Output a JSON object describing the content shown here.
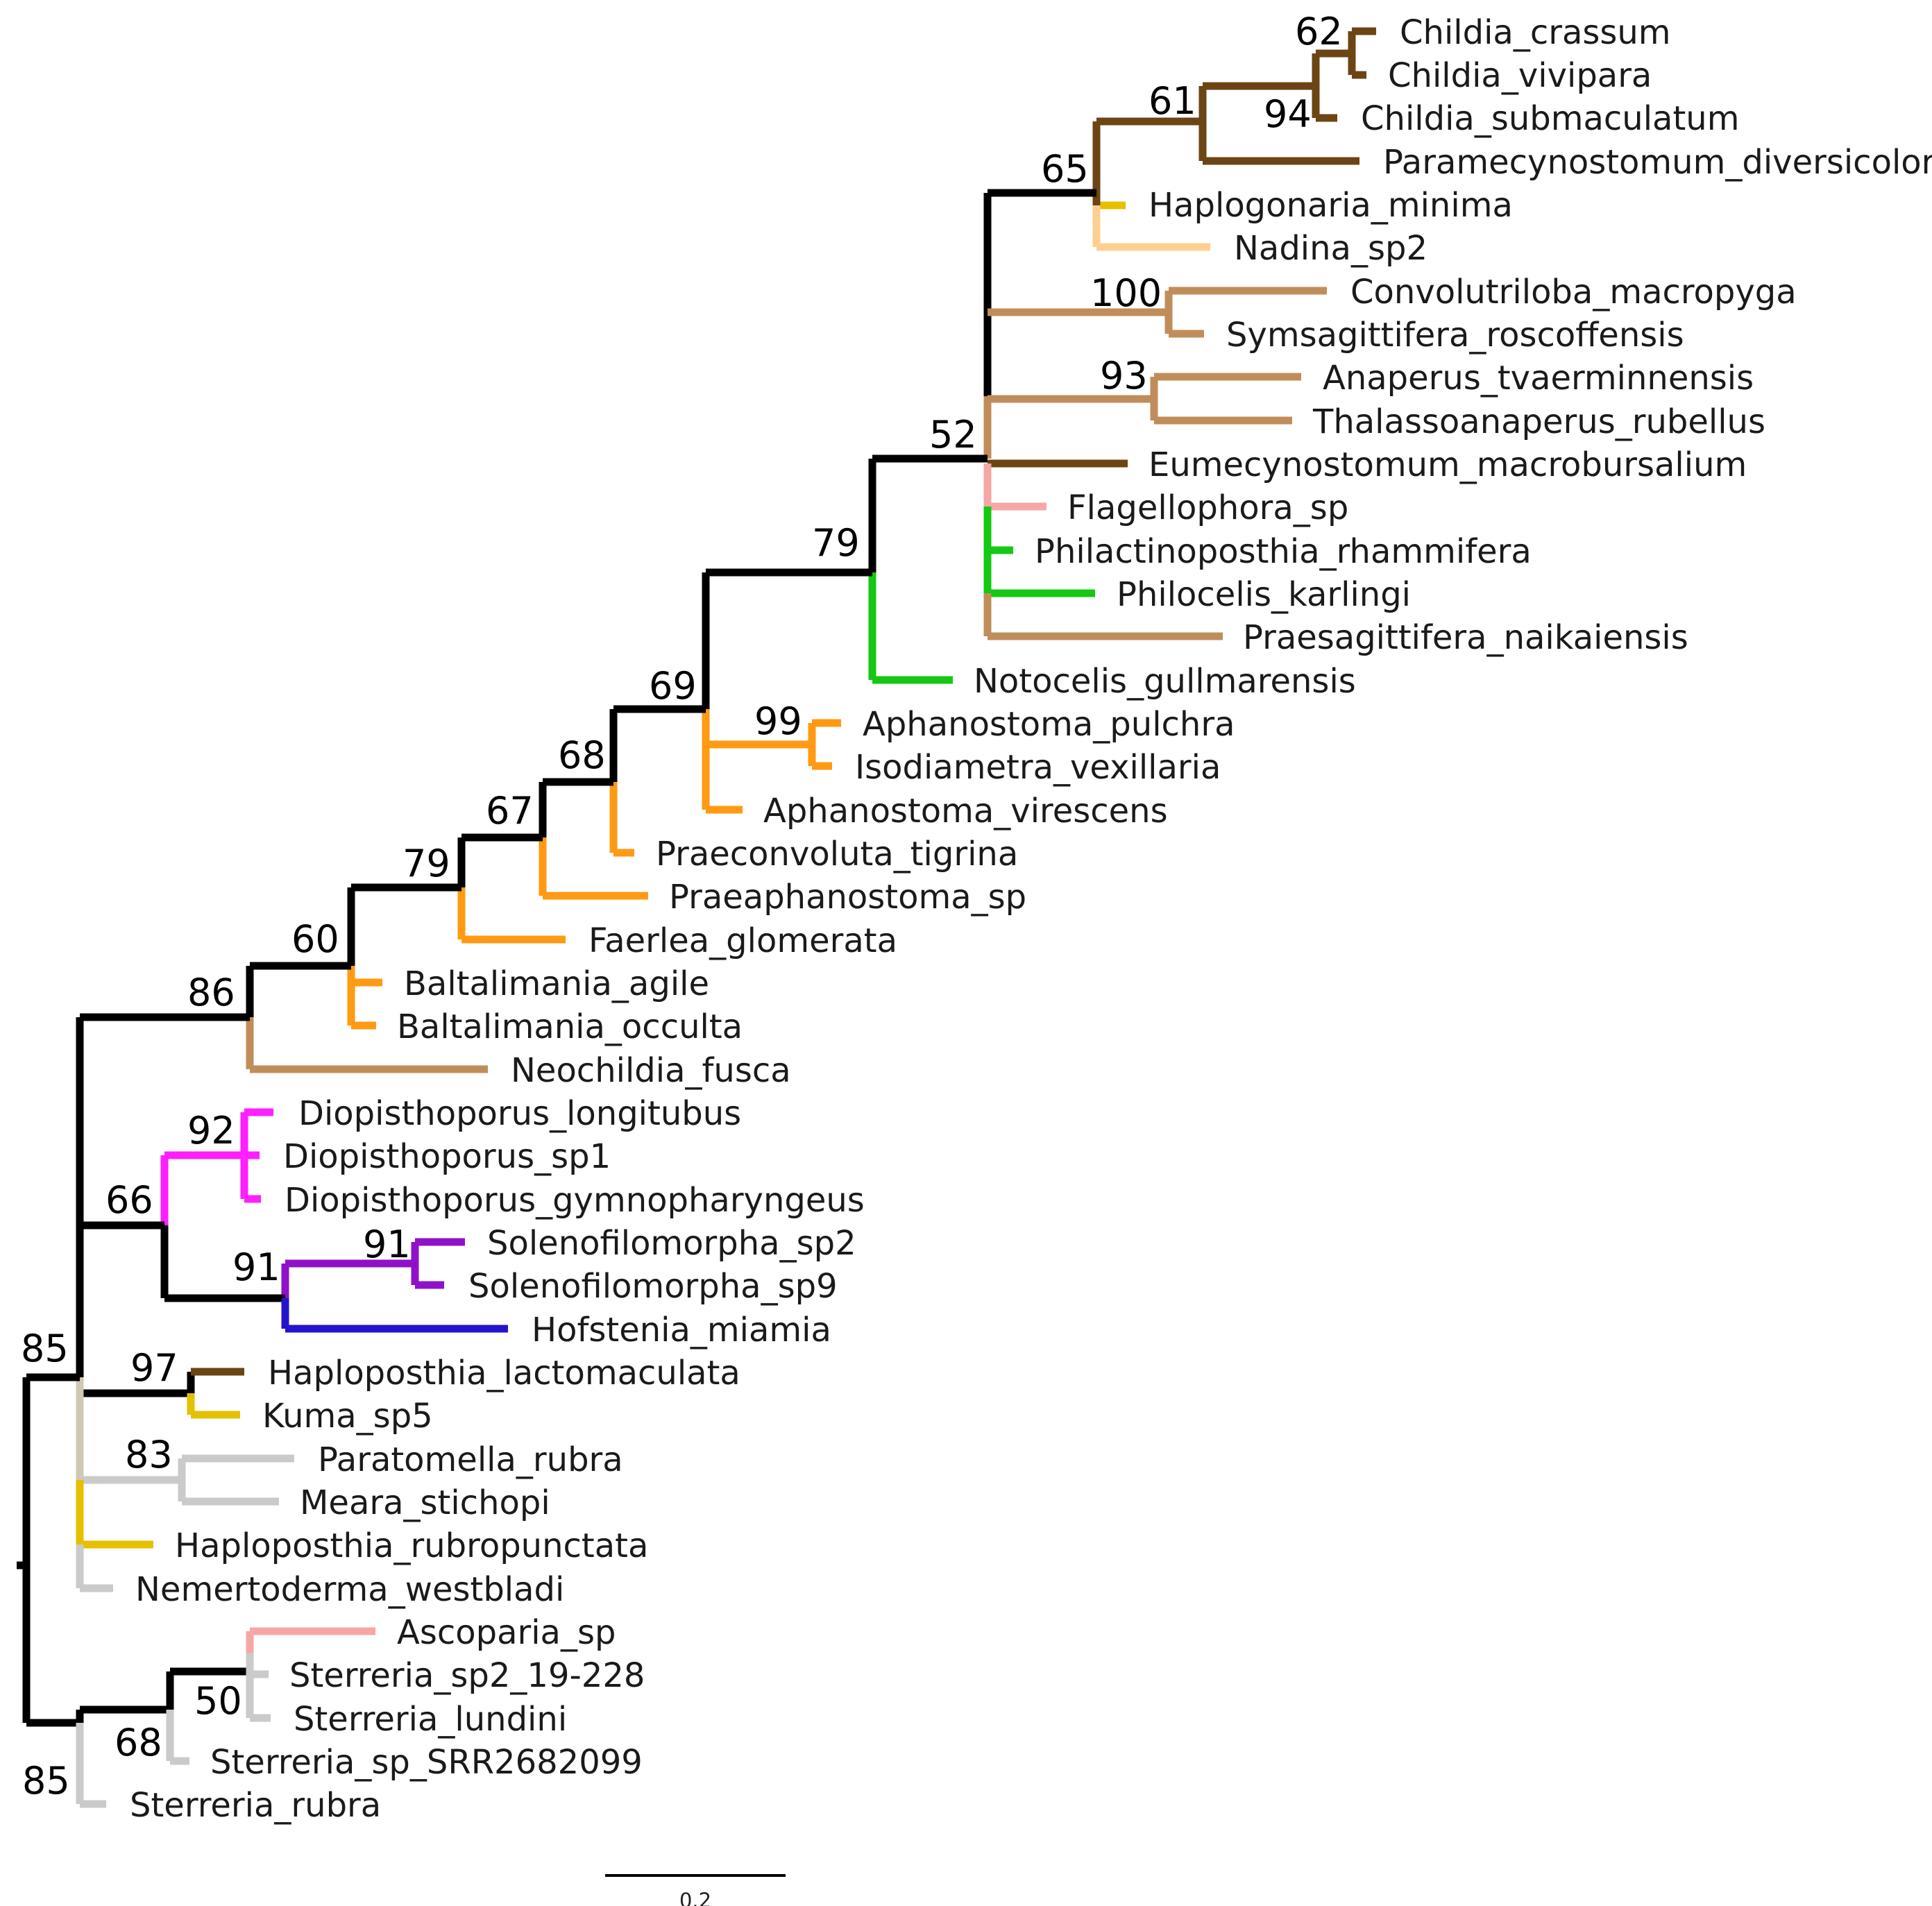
{
  "colors": {
    "black": "#000000",
    "brown": "#6b4513",
    "tan": "#c08d5a",
    "yellow": "#e5c000",
    "peach": "#ffcf92",
    "pink": "#f6a6a6",
    "green": "#14c814",
    "orange": "#ff9a12",
    "magenta": "#ff1fff",
    "purple": "#8f12c8",
    "blue": "#2414cc",
    "beige": "#cfc9b4",
    "gray": "#cacaca"
  },
  "taxa": [
    {
      "id": "t0",
      "label": "Childia_crassum",
      "color": "brown"
    },
    {
      "id": "t1",
      "label": "Childia_vivipara",
      "color": "brown"
    },
    {
      "id": "t2",
      "label": "Childia_submaculatum",
      "color": "brown"
    },
    {
      "id": "t3",
      "label": "Paramecynostomum_diversicolor",
      "color": "brown"
    },
    {
      "id": "t4",
      "label": "Haplogonaria_minima",
      "color": "yellow"
    },
    {
      "id": "t5",
      "label": "Nadina_sp2",
      "color": "peach"
    },
    {
      "id": "t6",
      "label": "Convolutriloba_macropyga",
      "color": "tan"
    },
    {
      "id": "t7",
      "label": "Symsagittifera_roscoffensis",
      "color": "tan"
    },
    {
      "id": "t8",
      "label": "Anaperus_tvaerminnensis",
      "color": "tan"
    },
    {
      "id": "t9",
      "label": "Thalassoanaperus_rubellus",
      "color": "tan"
    },
    {
      "id": "t10",
      "label": "Eumecynostomum_macrobursalium",
      "color": "brown"
    },
    {
      "id": "t11",
      "label": "Flagellophora_sp",
      "color": "pink"
    },
    {
      "id": "t12",
      "label": "Philactinoposthia_rhammifera",
      "color": "green"
    },
    {
      "id": "t13",
      "label": "Philocelis_karlingi",
      "color": "green"
    },
    {
      "id": "t14",
      "label": "Praesagittifera_naikaiensis",
      "color": "tan"
    },
    {
      "id": "t15",
      "label": "Notocelis_gullmarensis",
      "color": "green"
    },
    {
      "id": "t16",
      "label": "Aphanostoma_pulchra",
      "color": "orange"
    },
    {
      "id": "t17",
      "label": "Isodiametra_vexillaria",
      "color": "orange"
    },
    {
      "id": "t18",
      "label": "Aphanostoma_virescens",
      "color": "orange"
    },
    {
      "id": "t19",
      "label": "Praeconvoluta_tigrina",
      "color": "orange"
    },
    {
      "id": "t20",
      "label": "Praeaphanostoma_sp",
      "color": "orange"
    },
    {
      "id": "t21",
      "label": "Faerlea_glomerata",
      "color": "orange"
    },
    {
      "id": "t22",
      "label": "Baltalimania_agile",
      "color": "orange"
    },
    {
      "id": "t23",
      "label": "Baltalimania_occulta",
      "color": "orange"
    },
    {
      "id": "t24",
      "label": "Neochildia_fusca",
      "color": "tan"
    },
    {
      "id": "t25",
      "label": "Diopisthoporus_longitubus",
      "color": "magenta"
    },
    {
      "id": "t26",
      "label": "Diopisthoporus_sp1",
      "color": "magenta"
    },
    {
      "id": "t27",
      "label": "Diopisthoporus_gymnopharyngeus",
      "color": "magenta"
    },
    {
      "id": "t28",
      "label": "Solenofilomorpha_sp2",
      "color": "purple"
    },
    {
      "id": "t29",
      "label": "Solenofilomorpha_sp9",
      "color": "purple"
    },
    {
      "id": "t30",
      "label": "Hofstenia_miamia",
      "color": "blue"
    },
    {
      "id": "t31",
      "label": "Haploposthia_lactomaculata",
      "color": "brown"
    },
    {
      "id": "t32",
      "label": "Kuma_sp5",
      "color": "yellow"
    },
    {
      "id": "t33",
      "label": "Paratomella_rubra",
      "color": "gray"
    },
    {
      "id": "t34",
      "label": "Meara_stichopi",
      "color": "gray"
    },
    {
      "id": "t35",
      "label": "Haploposthia_rubropunctata",
      "color": "yellow"
    },
    {
      "id": "t36",
      "label": "Nemertoderma_westbladi",
      "color": "gray"
    },
    {
      "id": "t37",
      "label": "Ascoparia_sp",
      "color": "pink"
    },
    {
      "id": "t38",
      "label": "Sterreria_sp2_19-228",
      "color": "gray"
    },
    {
      "id": "t39",
      "label": "Sterreria_lundini",
      "color": "gray"
    },
    {
      "id": "t40",
      "label": "Sterreria_sp_SRR2682099",
      "color": "gray"
    },
    {
      "id": "t41",
      "label": "Sterreria_rubra",
      "color": "gray"
    }
  ],
  "support_values": [
    {
      "id": "n62",
      "value": "62"
    },
    {
      "id": "n94",
      "value": "94"
    },
    {
      "id": "n61",
      "value": "61"
    },
    {
      "id": "n65",
      "value": "65"
    },
    {
      "id": "n100",
      "value": "100"
    },
    {
      "id": "n93",
      "value": "93"
    },
    {
      "id": "n52",
      "value": "52"
    },
    {
      "id": "n79a",
      "value": "79"
    },
    {
      "id": "n99",
      "value": "99"
    },
    {
      "id": "n69",
      "value": "69"
    },
    {
      "id": "n68a",
      "value": "68"
    },
    {
      "id": "n67",
      "value": "67"
    },
    {
      "id": "n79b",
      "value": "79"
    },
    {
      "id": "n60",
      "value": "60"
    },
    {
      "id": "n86",
      "value": "86"
    },
    {
      "id": "n92",
      "value": "92"
    },
    {
      "id": "n66",
      "value": "66"
    },
    {
      "id": "n91a",
      "value": "91"
    },
    {
      "id": "n91b",
      "value": "91"
    },
    {
      "id": "n97",
      "value": "97"
    },
    {
      "id": "n83",
      "value": "83"
    },
    {
      "id": "n85a",
      "value": "85"
    },
    {
      "id": "n50",
      "value": "50"
    },
    {
      "id": "n68b",
      "value": "68"
    },
    {
      "id": "n85b",
      "value": "85"
    }
  ],
  "scale_bar": {
    "value": 0.2,
    "label": "0.2"
  }
}
